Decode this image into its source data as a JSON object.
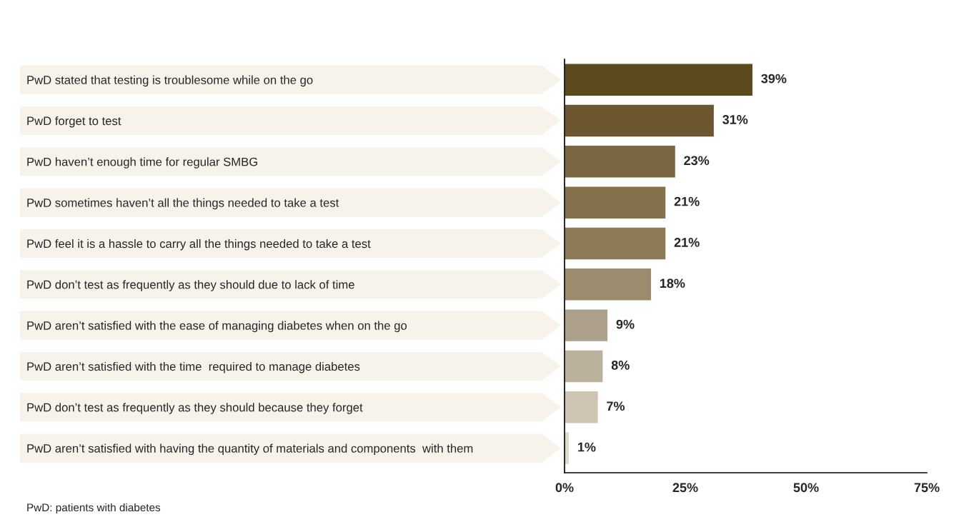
{
  "chart_data": {
    "type": "bar",
    "orientation": "horizontal",
    "categories": [
      "PwD stated that testing is troublesome while on the go",
      "PwD forget to test",
      "PwD haven’t enough time for regular SMBG",
      "PwD sometimes haven’t all the things needed to take a test",
      "PwD feel it is a hassle to carry all the things needed to take a test",
      "PwD don’t test as frequently as they should due to lack of time",
      "PwD aren’t satisfied with the ease of managing diabetes when on the go",
      "PwD aren’t satisfied with the time  required to manage diabetes",
      "PwD don’t test as frequently as they should because they forget",
      "PwD aren’t satisfied with having the quantity of materials and components  with them"
    ],
    "values": [
      39,
      31,
      23,
      21,
      21,
      18,
      9,
      8,
      7,
      1
    ],
    "colors": [
      "#5c4a1e",
      "#6b5630",
      "#7a6640",
      "#84704a",
      "#8d7b58",
      "#9c8c6e",
      "#ada08a",
      "#bcb19c",
      "#cdc4b3",
      "#e0dace"
    ],
    "value_labels": [
      "39%",
      "31%",
      "23%",
      "21%",
      "21%",
      "18%",
      "9%",
      "8%",
      "7%",
      "1%"
    ],
    "xlim": [
      0,
      75
    ],
    "xticks": [
      {
        "value": 0,
        "label": "0%"
      },
      {
        "value": 25,
        "label": "25%"
      },
      {
        "value": 50,
        "label": "50%"
      },
      {
        "value": 75,
        "label": "75%"
      }
    ],
    "annotations": [
      "PwD: patients with diabetes"
    ]
  }
}
